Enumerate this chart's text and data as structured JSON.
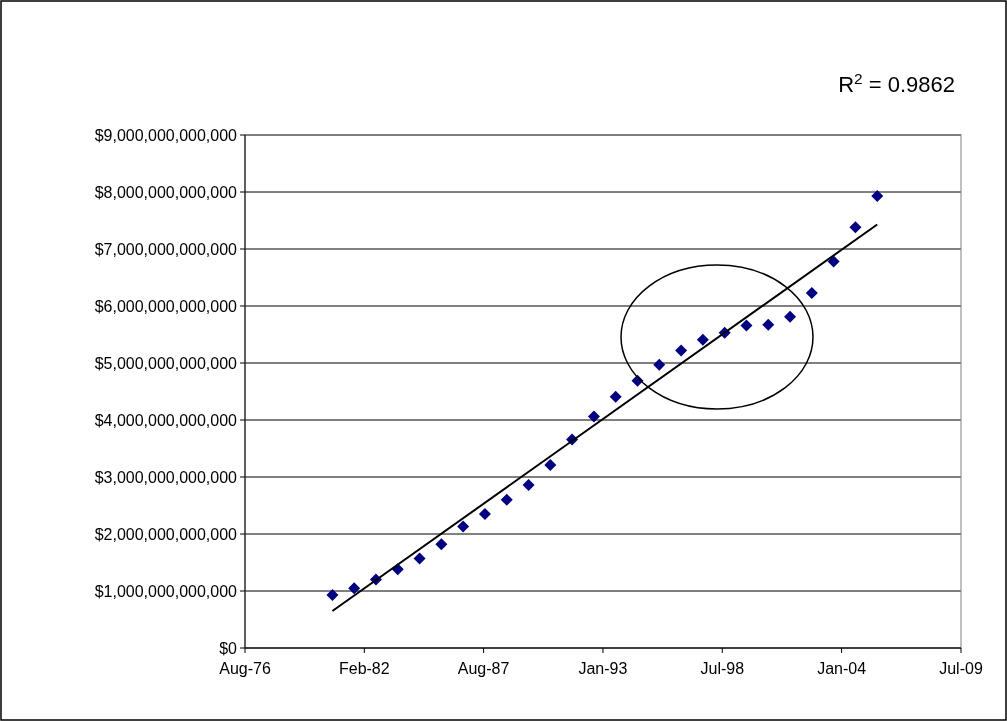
{
  "chart_data": {
    "type": "scatter",
    "annotations": [
      "R$^{2}$ = 0.9862"
    ],
    "x": [
      "1980-09",
      "1981-09",
      "1982-09",
      "1983-09",
      "1984-09",
      "1985-09",
      "1986-09",
      "1987-09",
      "1988-09",
      "1989-09",
      "1990-09",
      "1991-09",
      "1992-09",
      "1993-09",
      "1994-09",
      "1995-09",
      "1996-09",
      "1997-09",
      "1998-09",
      "1999-09",
      "2000-09",
      "2001-09",
      "2002-09",
      "2003-09",
      "2004-09",
      "2005-09"
    ],
    "series": [
      {
        "color": "#000080",
        "marker": "diamond",
        "values": [
          930000000000,
          1050000000000,
          1200000000000,
          1380000000000,
          1570000000000,
          1820000000000,
          2130000000000,
          2350000000000,
          2600000000000,
          2860000000000,
          3210000000000,
          3660000000000,
          4060000000000,
          4410000000000,
          4690000000000,
          4970000000000,
          5220000000000,
          5410000000000,
          5530000000000,
          5660000000000,
          5670000000000,
          5810000000000,
          6230000000000,
          6780000000000,
          7380000000000,
          7930000000000
        ]
      },
      {
        "type": "line",
        "color": "#000000",
        "x": [
          "1980-09",
          "2005-09"
        ],
        "values": [
          650000000000,
          7430000000000
        ]
      }
    ],
    "xlim": [
      "1976-08-28",
      "2009-07-06"
    ],
    "xticks": [
      {
        "value": "1976-08-28",
        "label": "Aug-76"
      },
      {
        "value": "1982-02-18",
        "label": "Feb-82"
      },
      {
        "value": "1987-08-10",
        "label": "Aug-87"
      },
      {
        "value": "1993-01-30",
        "label": "Jan-93"
      },
      {
        "value": "1998-07-23",
        "label": "Jul-98"
      },
      {
        "value": "2004-01-13",
        "label": "Jan-04"
      },
      {
        "value": "2009-07-06",
        "label": "Jul-09"
      }
    ],
    "ylim": [
      0,
      9000000000000
    ],
    "yticks": [
      {
        "value": 0,
        "label": "$0"
      },
      {
        "value": 1000000000000,
        "label": "$1,000,000,000,000"
      },
      {
        "value": 2000000000000,
        "label": "$2,000,000,000,000"
      },
      {
        "value": 3000000000000,
        "label": "$3,000,000,000,000"
      },
      {
        "value": 4000000000000,
        "label": "$4,000,000,000,000"
      },
      {
        "value": 5000000000000,
        "label": "$5,000,000,000,000"
      },
      {
        "value": 6000000000000,
        "label": "$6,000,000,000,000"
      },
      {
        "value": 7000000000000,
        "label": "$7,000,000,000,000"
      },
      {
        "value": 8000000000000,
        "label": "$8,000,000,000,000"
      },
      {
        "value": 9000000000000,
        "label": "$9,000,000,000,000"
      }
    ],
    "grid": "y"
  }
}
